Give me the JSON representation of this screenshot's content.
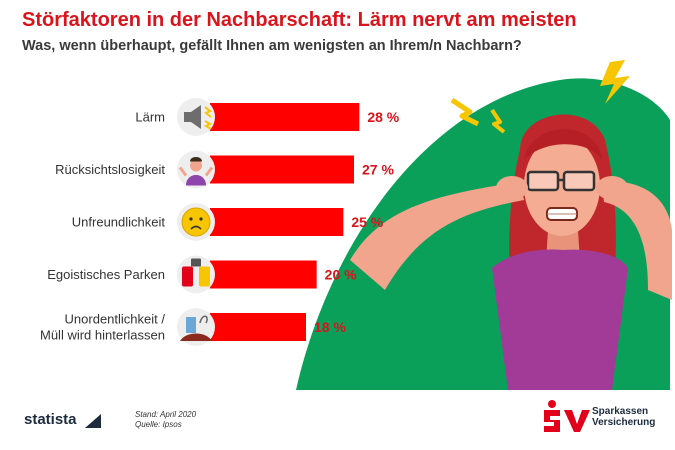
{
  "title": "Störfaktoren in der Nachbarschaft: Lärm nervt am meisten",
  "subtitle": "Was, wenn überhaupt, gefällt Ihnen am wenigsten an Ihrem/n Nachbarn?",
  "chart_data": {
    "type": "bar",
    "orientation": "horizontal",
    "categories": [
      "Lärm",
      "Rücksichtslosigkeit",
      "Unfreundlichkeit",
      "Egoistisches Parken",
      "Unordentlichkeit /\nMüll wird hinterlassen"
    ],
    "values": [
      28,
      27,
      25,
      20,
      18
    ],
    "value_labels": [
      "28 %",
      "27 %",
      "25 %",
      "20 %",
      "18 %"
    ],
    "icons": [
      "speaker-icon",
      "shrugging-person-icon",
      "sad-face-icon",
      "parked-cars-icon",
      "trash-pile-icon"
    ],
    "xlim": [
      0,
      30
    ],
    "grid": false,
    "bar_color": "#ff0000"
  },
  "footer": {
    "brand": "statista",
    "stand": "Stand: April 2020",
    "quelle": "Quelle: Ipsos",
    "partner_line1": "Sparkassen",
    "partner_line2": "Versicherung"
  },
  "colors": {
    "title": "#d9151b",
    "background_shape": "#0aa05a",
    "bar": "#ff0000",
    "lightning": "#f7c600"
  }
}
